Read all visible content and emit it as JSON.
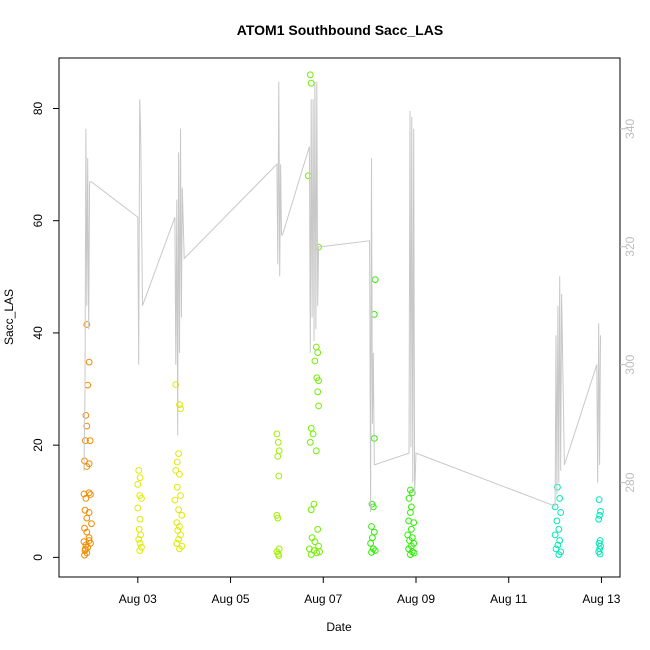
{
  "chart_data": {
    "type": "scatter",
    "title": "ATOM1 Southbound Sacc_LAS",
    "xlabel": "Date",
    "ylabel": "Sacc_LAS",
    "x_ticks": [
      "Aug 03",
      "Aug 05",
      "Aug 07",
      "Aug 09",
      "Aug 11",
      "Aug 13"
    ],
    "x_range_days": [
      1.3,
      13.4
    ],
    "y_ticks": [
      0,
      20,
      40,
      60,
      80
    ],
    "y_range": [
      -3.5,
      89
    ],
    "y2_ticks": [
      280,
      300,
      320,
      340
    ],
    "y2_range": [
      264,
      352
    ],
    "grid": false,
    "series": [
      {
        "color": "#f08c00",
        "points": [
          [
            1.9,
            41.5
          ],
          [
            1.95,
            34.8
          ],
          [
            1.92,
            30.7
          ],
          [
            1.88,
            25.3
          ],
          [
            1.9,
            23.4
          ],
          [
            1.87,
            20.8
          ],
          [
            1.97,
            20.8
          ],
          [
            1.85,
            17.2
          ],
          [
            1.95,
            16.7
          ],
          [
            1.9,
            16.2
          ],
          [
            1.84,
            11.3
          ],
          [
            1.95,
            11.5
          ],
          [
            1.88,
            10.5
          ],
          [
            1.98,
            11.2
          ],
          [
            1.86,
            8.4
          ],
          [
            1.95,
            8.0
          ],
          [
            1.9,
            7.0
          ],
          [
            2.0,
            6.0
          ],
          [
            1.85,
            5.2
          ],
          [
            1.9,
            4.5
          ],
          [
            1.95,
            3.5
          ],
          [
            1.84,
            2.8
          ],
          [
            1.88,
            2.2
          ],
          [
            1.92,
            1.8
          ],
          [
            1.86,
            1.2
          ],
          [
            1.9,
            0.8
          ],
          [
            1.85,
            0.4
          ],
          [
            1.95,
            3.0
          ],
          [
            1.98,
            2.5
          ],
          [
            1.87,
            1.5
          ]
        ]
      },
      {
        "color": "#e0ea00",
        "points": [
          [
            3.02,
            15.5
          ],
          [
            3.05,
            14.2
          ],
          [
            3.0,
            13.0
          ],
          [
            3.04,
            11.0
          ],
          [
            3.08,
            10.5
          ],
          [
            3.0,
            8.8
          ],
          [
            3.05,
            6.8
          ],
          [
            3.03,
            5.0
          ],
          [
            3.06,
            4.0
          ],
          [
            3.02,
            3.2
          ],
          [
            3.05,
            2.5
          ],
          [
            3.08,
            1.8
          ],
          [
            3.04,
            1.2
          ],
          [
            3.82,
            30.8
          ],
          [
            3.9,
            27.2
          ],
          [
            3.92,
            26.5
          ],
          [
            3.88,
            18.5
          ],
          [
            3.85,
            17.0
          ],
          [
            3.82,
            15.5
          ],
          [
            3.9,
            14.8
          ],
          [
            3.85,
            12.5
          ],
          [
            3.92,
            11.0
          ],
          [
            3.8,
            10.2
          ],
          [
            3.88,
            8.5
          ],
          [
            3.95,
            7.5
          ],
          [
            3.84,
            6.2
          ],
          [
            3.9,
            5.5
          ],
          [
            3.86,
            4.8
          ],
          [
            3.92,
            4.0
          ],
          [
            3.88,
            3.2
          ],
          [
            3.84,
            2.5
          ],
          [
            3.95,
            2.0
          ],
          [
            3.9,
            1.5
          ]
        ]
      },
      {
        "color": "#a2ef00",
        "points": [
          [
            6.0,
            22.0
          ],
          [
            6.03,
            20.5
          ],
          [
            6.05,
            19.0
          ],
          [
            6.02,
            18.0
          ],
          [
            6.04,
            14.5
          ],
          [
            6.0,
            7.5
          ],
          [
            6.02,
            7.0
          ],
          [
            6.05,
            1.5
          ],
          [
            6.0,
            1.0
          ],
          [
            6.03,
            0.6
          ],
          [
            6.04,
            0.3
          ]
        ]
      },
      {
        "color": "#72f000",
        "points": [
          [
            6.72,
            86.0
          ],
          [
            6.74,
            84.5
          ],
          [
            6.68,
            68.0
          ],
          [
            6.9,
            55.3
          ],
          [
            6.85,
            37.5
          ],
          [
            6.88,
            36.5
          ],
          [
            6.82,
            35.0
          ],
          [
            6.86,
            32.0
          ],
          [
            6.9,
            31.5
          ],
          [
            6.88,
            29.5
          ],
          [
            6.9,
            27.0
          ],
          [
            6.74,
            23.0
          ],
          [
            6.78,
            22.0
          ],
          [
            6.72,
            20.5
          ],
          [
            6.85,
            19.0
          ],
          [
            6.8,
            9.5
          ],
          [
            6.74,
            8.5
          ],
          [
            6.88,
            5.0
          ],
          [
            6.76,
            3.5
          ],
          [
            6.82,
            2.8
          ],
          [
            6.9,
            2.0
          ],
          [
            6.7,
            1.5
          ],
          [
            6.8,
            1.2
          ],
          [
            6.86,
            0.8
          ],
          [
            6.74,
            0.5
          ],
          [
            6.92,
            1.0
          ]
        ]
      },
      {
        "color": "#2cf000",
        "points": [
          [
            8.12,
            49.5
          ],
          [
            8.1,
            43.3
          ],
          [
            8.1,
            21.2
          ],
          [
            8.05,
            9.5
          ],
          [
            8.08,
            9.0
          ],
          [
            8.04,
            5.5
          ],
          [
            8.1,
            4.5
          ],
          [
            8.06,
            3.5
          ],
          [
            8.02,
            2.5
          ],
          [
            8.08,
            1.5
          ],
          [
            8.04,
            0.9
          ],
          [
            8.12,
            1.2
          ],
          [
            8.88,
            12.0
          ],
          [
            8.92,
            11.5
          ],
          [
            8.85,
            10.5
          ],
          [
            8.9,
            9.0
          ],
          [
            8.88,
            8.0
          ],
          [
            8.84,
            6.5
          ],
          [
            8.95,
            6.2
          ],
          [
            8.9,
            5.0
          ],
          [
            8.82,
            4.0
          ],
          [
            8.92,
            3.5
          ],
          [
            8.86,
            3.0
          ],
          [
            8.95,
            2.5
          ],
          [
            8.9,
            2.0
          ],
          [
            8.84,
            1.5
          ],
          [
            8.92,
            1.0
          ],
          [
            8.88,
            0.5
          ],
          [
            8.96,
            0.8
          ]
        ]
      },
      {
        "color": "#00e8b5",
        "points": [
          [
            12.05,
            12.5
          ],
          [
            12.1,
            10.5
          ],
          [
            12.0,
            9.0
          ],
          [
            12.12,
            8.0
          ],
          [
            12.04,
            6.5
          ],
          [
            12.08,
            5.0
          ],
          [
            12.0,
            4.0
          ],
          [
            12.1,
            3.0
          ],
          [
            12.06,
            2.2
          ],
          [
            12.02,
            1.5
          ],
          [
            12.12,
            1.0
          ],
          [
            12.08,
            0.5
          ],
          [
            12.95,
            10.3
          ],
          [
            12.98,
            8.2
          ],
          [
            12.96,
            7.5
          ],
          [
            12.94,
            6.8
          ],
          [
            12.97,
            3.0
          ],
          [
            12.95,
            2.5
          ],
          [
            12.98,
            2.0
          ],
          [
            12.96,
            1.5
          ],
          [
            12.94,
            1.0
          ],
          [
            12.97,
            0.6
          ]
        ]
      },
      {
        "type": "line",
        "axis": "right",
        "color": "#c8c8c8",
        "points": [
          [
            1.84,
            282
          ],
          [
            1.86,
            296
          ],
          [
            1.88,
            340
          ],
          [
            1.9,
            310
          ],
          [
            1.92,
            335
          ],
          [
            1.94,
            306
          ],
          [
            1.96,
            331
          ],
          [
            2.0,
            331
          ],
          [
            3.0,
            325
          ],
          [
            3.02,
            300
          ],
          [
            3.04,
            345
          ],
          [
            3.06,
            340
          ],
          [
            3.1,
            310
          ],
          [
            3.8,
            325
          ],
          [
            3.82,
            300
          ],
          [
            3.84,
            328
          ],
          [
            3.86,
            288
          ],
          [
            3.88,
            336
          ],
          [
            3.9,
            302
          ],
          [
            3.92,
            340
          ],
          [
            3.94,
            308
          ],
          [
            3.96,
            330
          ],
          [
            4.0,
            318
          ],
          [
            6.0,
            334
          ],
          [
            6.02,
            317
          ],
          [
            6.04,
            348
          ],
          [
            6.06,
            315
          ],
          [
            6.08,
            334
          ],
          [
            6.1,
            322
          ],
          [
            6.12,
            322
          ],
          [
            6.7,
            337
          ],
          [
            6.72,
            302
          ],
          [
            6.74,
            345
          ],
          [
            6.76,
            308
          ],
          [
            6.78,
            345
          ],
          [
            6.8,
            304
          ],
          [
            6.82,
            348
          ],
          [
            6.84,
            306
          ],
          [
            6.86,
            348
          ],
          [
            6.88,
            310
          ],
          [
            6.9,
            320
          ],
          [
            6.95,
            320
          ],
          [
            8.0,
            321
          ],
          [
            8.02,
            275
          ],
          [
            8.04,
            335
          ],
          [
            8.06,
            290
          ],
          [
            8.08,
            302
          ],
          [
            8.1,
            283
          ],
          [
            8.85,
            285
          ],
          [
            8.87,
            343
          ],
          [
            8.89,
            286
          ],
          [
            8.91,
            342
          ],
          [
            8.93,
            280
          ],
          [
            8.95,
            340
          ],
          [
            8.97,
            278
          ],
          [
            9.0,
            285
          ],
          [
            12.0,
            276
          ],
          [
            12.02,
            305
          ],
          [
            12.04,
            278
          ],
          [
            12.06,
            310
          ],
          [
            12.08,
            280
          ],
          [
            12.1,
            315
          ],
          [
            12.12,
            282
          ],
          [
            12.14,
            312
          ],
          [
            12.2,
            283
          ],
          [
            12.9,
            300
          ],
          [
            12.92,
            280
          ],
          [
            12.94,
            307
          ],
          [
            12.96,
            283
          ],
          [
            12.98,
            305
          ]
        ]
      }
    ]
  }
}
